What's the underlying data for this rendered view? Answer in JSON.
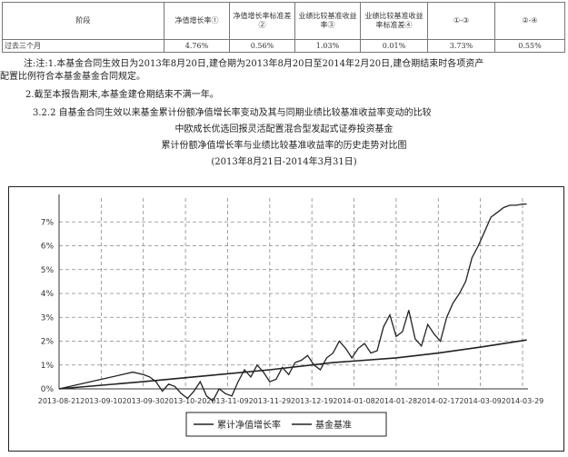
{
  "table": {
    "headers": [
      "阶段",
      "净值增长率①",
      "净值增长率标准差②",
      "业绩比较基准收益率③",
      "业绩比较基准收益率标准差④",
      "①-③",
      "②-④"
    ],
    "rows": [
      [
        "过去三个月",
        "4.76%",
        "0.56%",
        "1.03%",
        "0.01%",
        "3.73%",
        "0.55%"
      ]
    ]
  },
  "notes": {
    "note1_line1": "注:注:1.本基金合同生效日为2013年8月20日,建仓期为2013年8月20日至2014年2月20日,建仓期结束时各项资产",
    "note1_line2": "配置比例符合本基金基金合同规定。",
    "note2": "2.截至本报告期末,本基金建仓期结束不满一年。",
    "section": "3.2.2 自基金合同生效以来基金累计份额净值增长率变动及其与同期业绩比较基准收益率变动的比较"
  },
  "chart_heading": {
    "fund_name": "中欧成长优选回报灵活配置混合型发起式证券投资基金",
    "chart_title": "累计份额净值增长率与业绩比较基准收益率的历史走势对比图",
    "date_range": "(2013年8月21日-2014年3月31日)"
  },
  "chart_data": {
    "type": "line",
    "x_ticks": [
      "2013-08-21",
      "2013-09-10",
      "2013-09-30",
      "2013-10-20",
      "2013-11-09",
      "2013-11-29",
      "2013-12-19",
      "2014-01-08",
      "2014-01-28",
      "2014-02-17",
      "2014-03-09",
      "2014-03-29"
    ],
    "y_ticks": [
      "0%",
      "1%",
      "2%",
      "3%",
      "4%",
      "5%",
      "6%",
      "7%"
    ],
    "ylim": [
      0,
      8
    ],
    "grid": true,
    "legend_position": "bottom",
    "series": [
      {
        "name": "累计净值增长率",
        "color": "#222222",
        "x": [
          "2013-08-21",
          "2013-09-05",
          "2013-09-15",
          "2013-09-20",
          "2013-09-25",
          "2013-09-30",
          "2013-10-03",
          "2013-10-06",
          "2013-10-09",
          "2013-10-12",
          "2013-10-15",
          "2013-10-18",
          "2013-10-21",
          "2013-10-24",
          "2013-10-27",
          "2013-10-30",
          "2013-11-02",
          "2013-11-05",
          "2013-11-08",
          "2013-11-11",
          "2013-11-14",
          "2013-11-17",
          "2013-11-20",
          "2013-11-23",
          "2013-11-26",
          "2013-11-29",
          "2013-12-02",
          "2013-12-05",
          "2013-12-08",
          "2013-12-11",
          "2013-12-14",
          "2013-12-17",
          "2013-12-20",
          "2013-12-23",
          "2013-12-26",
          "2013-12-29",
          "2014-01-01",
          "2014-01-04",
          "2014-01-07",
          "2014-01-10",
          "2014-01-13",
          "2014-01-16",
          "2014-01-19",
          "2014-01-22",
          "2014-01-25",
          "2014-01-28",
          "2014-01-31",
          "2014-02-03",
          "2014-02-06",
          "2014-02-09",
          "2014-02-12",
          "2014-02-15",
          "2014-02-18",
          "2014-02-21",
          "2014-02-24",
          "2014-02-27",
          "2014-03-02",
          "2014-03-05",
          "2014-03-08",
          "2014-03-11",
          "2014-03-14",
          "2014-03-17",
          "2014-03-20",
          "2014-03-23",
          "2014-03-26",
          "2014-03-29",
          "2014-03-31"
        ],
        "y": [
          0.0,
          0.3,
          0.5,
          0.6,
          0.7,
          0.6,
          0.5,
          0.3,
          -0.1,
          0.2,
          0.1,
          -0.2,
          -0.4,
          -0.1,
          0.3,
          -0.3,
          -0.5,
          0.0,
          -0.2,
          -0.3,
          0.3,
          0.8,
          0.5,
          1.0,
          0.7,
          0.3,
          0.4,
          0.9,
          0.6,
          1.1,
          1.2,
          1.4,
          1.0,
          0.8,
          1.3,
          1.5,
          2.0,
          1.7,
          1.3,
          1.7,
          1.9,
          1.5,
          1.6,
          2.6,
          3.1,
          2.2,
          2.4,
          3.3,
          2.1,
          1.8,
          2.7,
          2.3,
          2.0,
          3.0,
          3.6,
          4.0,
          4.5,
          5.5,
          6.0,
          6.6,
          7.2,
          7.4,
          7.6,
          7.7,
          7.7,
          7.75,
          7.75
        ]
      },
      {
        "name": "基金基准",
        "color": "#222222",
        "x": [
          "2013-08-21",
          "2013-09-30",
          "2013-10-30",
          "2013-11-29",
          "2013-12-29",
          "2014-01-28",
          "2014-02-17",
          "2014-03-09",
          "2014-03-31"
        ],
        "y": [
          0.0,
          0.3,
          0.55,
          0.8,
          1.1,
          1.3,
          1.5,
          1.75,
          2.05
        ]
      }
    ]
  }
}
